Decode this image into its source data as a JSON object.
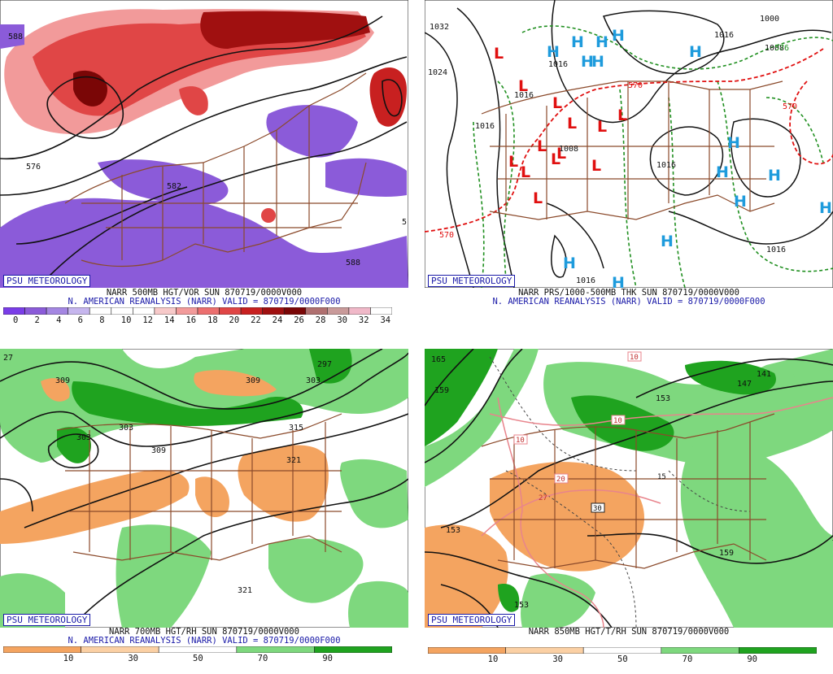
{
  "panels": [
    {
      "id": "500mb",
      "badge": "PSU METEOROLOGY",
      "line1": "NARR 500MB HGT/VOR SUN 870719/0000V000",
      "line2": "N. AMERICAN REANALYSIS (NARR) VALID = 870719/0000F000",
      "contour_labels": [
        "588",
        "576",
        "582",
        "588",
        "5"
      ],
      "colorbar": {
        "labels": [
          "0",
          "2",
          "4",
          "6",
          "8",
          "10",
          "12",
          "14",
          "16",
          "18",
          "20",
          "22",
          "24",
          "26",
          "28",
          "30",
          "32",
          "34"
        ],
        "colors": [
          "#7a3de8",
          "#8b5bd9",
          "#a486e2",
          "#c6b6ee",
          "#ffffff",
          "#ffffff",
          "#ffffff",
          "#f7c9c9",
          "#f29a9a",
          "#ec6f6f",
          "#e04646",
          "#c82020",
          "#a01010",
          "#7a0606",
          "#b07070",
          "#c99a9a",
          "#f0b8c8",
          "#ffffff"
        ]
      }
    },
    {
      "id": "surface",
      "badge": "PSU METEOROLOGY",
      "line1": "NARR PRS/1000-500MB THK SUN 870719/0000V000",
      "line2": "N. AMERICAN REANALYSIS (NARR) VALID = 870719/0000F000",
      "contour_labels": [
        "1032",
        "1024",
        "1016",
        "1016",
        "1016",
        "1008",
        "1000",
        "1008",
        "1016",
        "1016",
        "1016",
        "1016",
        "570",
        "570",
        "570",
        "576"
      ],
      "highs": "H",
      "lows": "L"
    },
    {
      "id": "700mb",
      "badge": "PSU METEOROLOGY",
      "line1": "NARR 700MB HGT/RH SUN 870719/0000V000",
      "line2": "N. AMERICAN REANALYSIS (NARR) VALID = 870719/0000F000",
      "contour_labels": [
        "27",
        "309",
        "309",
        "297",
        "303",
        "303",
        "303",
        "309",
        "315",
        "321",
        "321"
      ],
      "colorbar": {
        "labels": [
          "10",
          "30",
          "50",
          "70",
          "90"
        ],
        "colors": [
          "#f4a460",
          "#fbd0a4",
          "#ffffff",
          "#7ed87e",
          "#1fa31f"
        ]
      }
    },
    {
      "id": "850mb",
      "badge": "PSU METEOROLOGY",
      "line1": "NARR 850MB HGT/T/RH SUN 870719/0000V000",
      "line2": "",
      "contour_labels": [
        "165",
        "159",
        "153",
        "147",
        "141",
        "153",
        "153",
        "159",
        "153",
        "10",
        "10",
        "10",
        "20",
        "30",
        "27",
        "15"
      ],
      "colorbar": {
        "labels": [
          "10",
          "30",
          "50",
          "70",
          "90"
        ],
        "colors": [
          "#f4a460",
          "#fbd0a4",
          "#ffffff",
          "#7ed87e",
          "#1fa31f"
        ]
      }
    }
  ],
  "colors": {
    "badge_blue": "#1a1aa8",
    "map_brown": "#8b4a2b",
    "high_blue": "#1e9bdc",
    "low_red": "#e01010",
    "thickness_red": "#e01010",
    "thickness_green": "#1f8f1f"
  }
}
